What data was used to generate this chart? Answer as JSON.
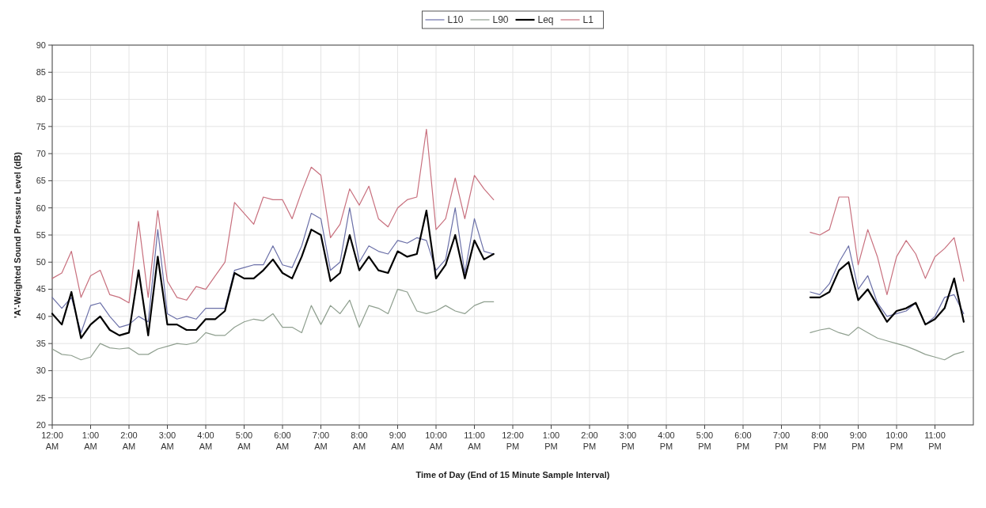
{
  "chart_data": {
    "type": "line",
    "xlabel": "Time of Day (End of 15 Minute Sample Interval)",
    "ylabel": "'A'-Weighted Sound Pressure Level (dB)",
    "x": [
      0,
      0.25,
      0.5,
      0.75,
      1,
      1.25,
      1.5,
      1.75,
      2,
      2.25,
      2.5,
      2.75,
      3,
      3.25,
      3.5,
      3.75,
      4,
      4.25,
      4.5,
      4.75,
      5,
      5.25,
      5.5,
      5.75,
      6,
      6.25,
      6.5,
      6.75,
      7,
      7.25,
      7.5,
      7.75,
      8,
      8.25,
      8.5,
      8.75,
      9,
      9.25,
      9.5,
      9.75,
      10,
      10.25,
      10.5,
      10.75,
      11,
      11.25,
      11.5,
      11.75,
      19.75,
      20,
      20.25,
      20.5,
      20.75,
      21,
      21.25,
      21.5,
      21.75,
      22,
      22.25,
      22.5,
      22.75,
      23,
      23.25,
      23.5,
      23.75
    ],
    "series": [
      {
        "name": "L10",
        "color": "#6b70a8",
        "values": [
          43.5,
          41.5,
          43.5,
          37,
          42,
          42.5,
          40,
          38,
          38.5,
          40,
          39,
          56,
          40.5,
          39.5,
          40,
          39.5,
          41.5,
          41.5,
          41.5,
          48.5,
          49,
          49.5,
          49.5,
          53,
          49.5,
          49,
          53,
          59,
          58,
          48.5,
          50,
          60,
          50,
          53,
          52,
          51.5,
          54,
          53.5,
          54.5,
          54,
          48.5,
          50.5,
          60,
          48,
          58,
          52,
          51.5,
          null,
          44.5,
          44,
          46,
          50,
          53,
          45,
          47.5,
          42.5,
          40,
          40.5,
          41,
          42.5,
          38.5,
          40,
          43.5,
          44,
          40.5
        ]
      },
      {
        "name": "L90",
        "color": "#8f9f8f",
        "values": [
          34,
          33,
          32.8,
          32,
          32.5,
          35,
          34.2,
          34,
          34.2,
          33,
          33,
          34,
          34.5,
          35,
          34.8,
          35.2,
          37,
          36.5,
          36.5,
          38,
          39,
          39.5,
          39.2,
          40.5,
          38,
          38,
          37,
          42,
          38.5,
          42,
          40.5,
          43,
          38,
          42,
          41.5,
          40.5,
          45,
          44.5,
          41,
          40.5,
          41,
          42,
          41,
          40.5,
          42,
          42.7,
          42.7,
          null,
          37,
          37.5,
          37.8,
          37,
          36.5,
          38,
          37,
          36,
          35.5,
          35,
          34.5,
          33.8,
          33,
          32.5,
          32,
          33,
          33.5
        ]
      },
      {
        "name": "Leq",
        "color": "#000000",
        "values": [
          40.5,
          38.5,
          44.5,
          36,
          38.5,
          40,
          37.5,
          36.5,
          37,
          48.5,
          36.5,
          51,
          38.5,
          38.5,
          37.5,
          37.5,
          39.5,
          39.5,
          41,
          48,
          47,
          47,
          48.5,
          50.5,
          48,
          47,
          51,
          56,
          55,
          46.5,
          48,
          55,
          48.5,
          51,
          48.5,
          48,
          52,
          51,
          51.5,
          59.5,
          47,
          49.5,
          55,
          47,
          54,
          50.5,
          51.5,
          null,
          43.5,
          43.5,
          44.5,
          48.5,
          50,
          43,
          45,
          42,
          39,
          41,
          41.5,
          42.5,
          38.5,
          39.5,
          41.5,
          47,
          39
        ]
      },
      {
        "name": "L1",
        "color": "#c8707e",
        "values": [
          47,
          48,
          52,
          43.5,
          47.5,
          48.5,
          44,
          43.5,
          42.5,
          57.5,
          43.5,
          59.5,
          46.5,
          43.5,
          43,
          45.5,
          45,
          47.5,
          50,
          61,
          59,
          57,
          62,
          61.5,
          61.5,
          58,
          63,
          67.5,
          66,
          54.5,
          57,
          63.5,
          60.5,
          64,
          58,
          56.5,
          60,
          61.5,
          62,
          74.5,
          56,
          58,
          65.5,
          58,
          66,
          63.5,
          61.5,
          null,
          55.5,
          55,
          56,
          62,
          62,
          49.5,
          56,
          51,
          44,
          51,
          54,
          51.5,
          47,
          51,
          52.5,
          54.5,
          46.5
        ]
      }
    ],
    "xlim": [
      0,
      24
    ],
    "xticks": [
      {
        "value": 0,
        "label": "12:00 AM"
      },
      {
        "value": 1,
        "label": "1:00 AM"
      },
      {
        "value": 2,
        "label": "2:00 AM"
      },
      {
        "value": 3,
        "label": "3:00 AM"
      },
      {
        "value": 4,
        "label": "4:00 AM"
      },
      {
        "value": 5,
        "label": "5:00 AM"
      },
      {
        "value": 6,
        "label": "6:00 AM"
      },
      {
        "value": 7,
        "label": "7:00 AM"
      },
      {
        "value": 8,
        "label": "8:00 AM"
      },
      {
        "value": 9,
        "label": "9:00 AM"
      },
      {
        "value": 10,
        "label": "10:00 AM"
      },
      {
        "value": 11,
        "label": "11:00 AM"
      },
      {
        "value": 12,
        "label": "12:00 PM"
      },
      {
        "value": 13,
        "label": "1:00 PM"
      },
      {
        "value": 14,
        "label": "2:00 PM"
      },
      {
        "value": 15,
        "label": "3:00 PM"
      },
      {
        "value": 16,
        "label": "4:00 PM"
      },
      {
        "value": 17,
        "label": "5:00 PM"
      },
      {
        "value": 18,
        "label": "6:00 PM"
      },
      {
        "value": 19,
        "label": "7:00 PM"
      },
      {
        "value": 20,
        "label": "8:00 PM"
      },
      {
        "value": 21,
        "label": "9:00 PM"
      },
      {
        "value": 22,
        "label": "10:00 PM"
      },
      {
        "value": 23,
        "label": "11:00 PM"
      }
    ],
    "ylim": [
      20,
      90
    ],
    "yticks": [
      20,
      25,
      30,
      35,
      40,
      45,
      50,
      55,
      60,
      65,
      70,
      75,
      80,
      85,
      90
    ],
    "grid": true,
    "legend": "top",
    "marker": "none",
    "line_style": "solid"
  }
}
